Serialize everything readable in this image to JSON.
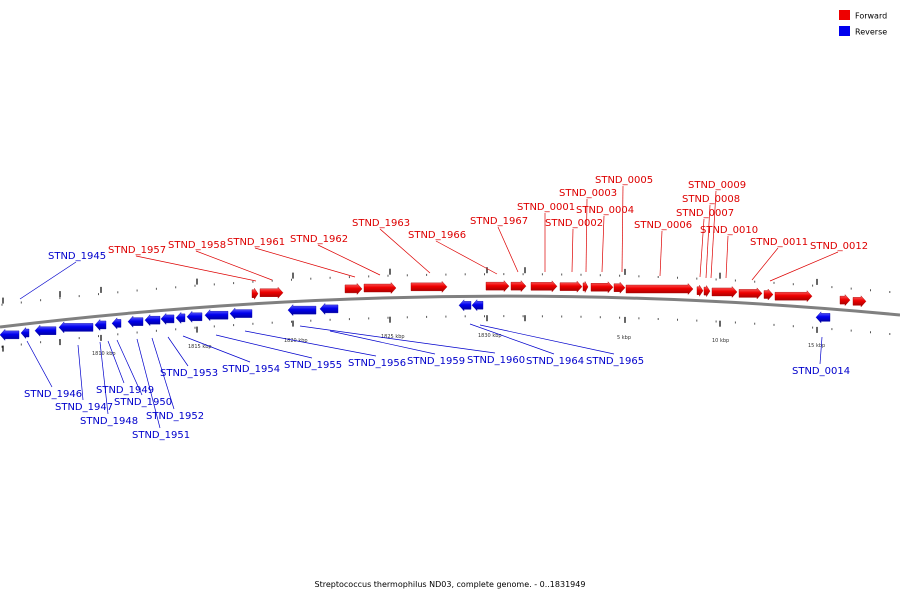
{
  "caption": "Streptococcus thermophilus ND03, complete genome. - 0..1831949",
  "legend": [
    {
      "label": "Forward",
      "color": "#ee0000"
    },
    {
      "label": "Reverse",
      "color": "#0000ee"
    }
  ],
  "colors": {
    "forward": "#ee0000",
    "reverse": "#0000ee",
    "backbone": "#808080",
    "forward_label": "#dd0000",
    "reverse_label": "#0000cc"
  },
  "scale_labels": [
    "1810 kbp",
    "1815 kbp",
    "1820 kbp",
    "1825 kbp",
    "1830 kbp",
    "5 kbp",
    "10 kbp",
    "15 kbp"
  ],
  "forward_genes": [
    "STND_1957",
    "STND_1958",
    "STND_1961",
    "STND_1962",
    "STND_1963",
    "STND_1966",
    "STND_1967",
    "STND_0001",
    "STND_0002",
    "STND_0003",
    "STND_0004",
    "STND_0005",
    "STND_0006",
    "STND_0007",
    "STND_0008",
    "STND_0009",
    "STND_0010",
    "STND_0011",
    "STND_0012"
  ],
  "reverse_genes": [
    "STND_1945",
    "STND_1946",
    "STND_1947",
    "STND_1948",
    "STND_1949",
    "STND_1950",
    "STND_1951",
    "STND_1952",
    "STND_1953",
    "STND_1954",
    "STND_1955",
    "STND_1956",
    "STND_1959",
    "STND_1960",
    "STND_1964",
    "STND_1965",
    "STND_0014"
  ]
}
